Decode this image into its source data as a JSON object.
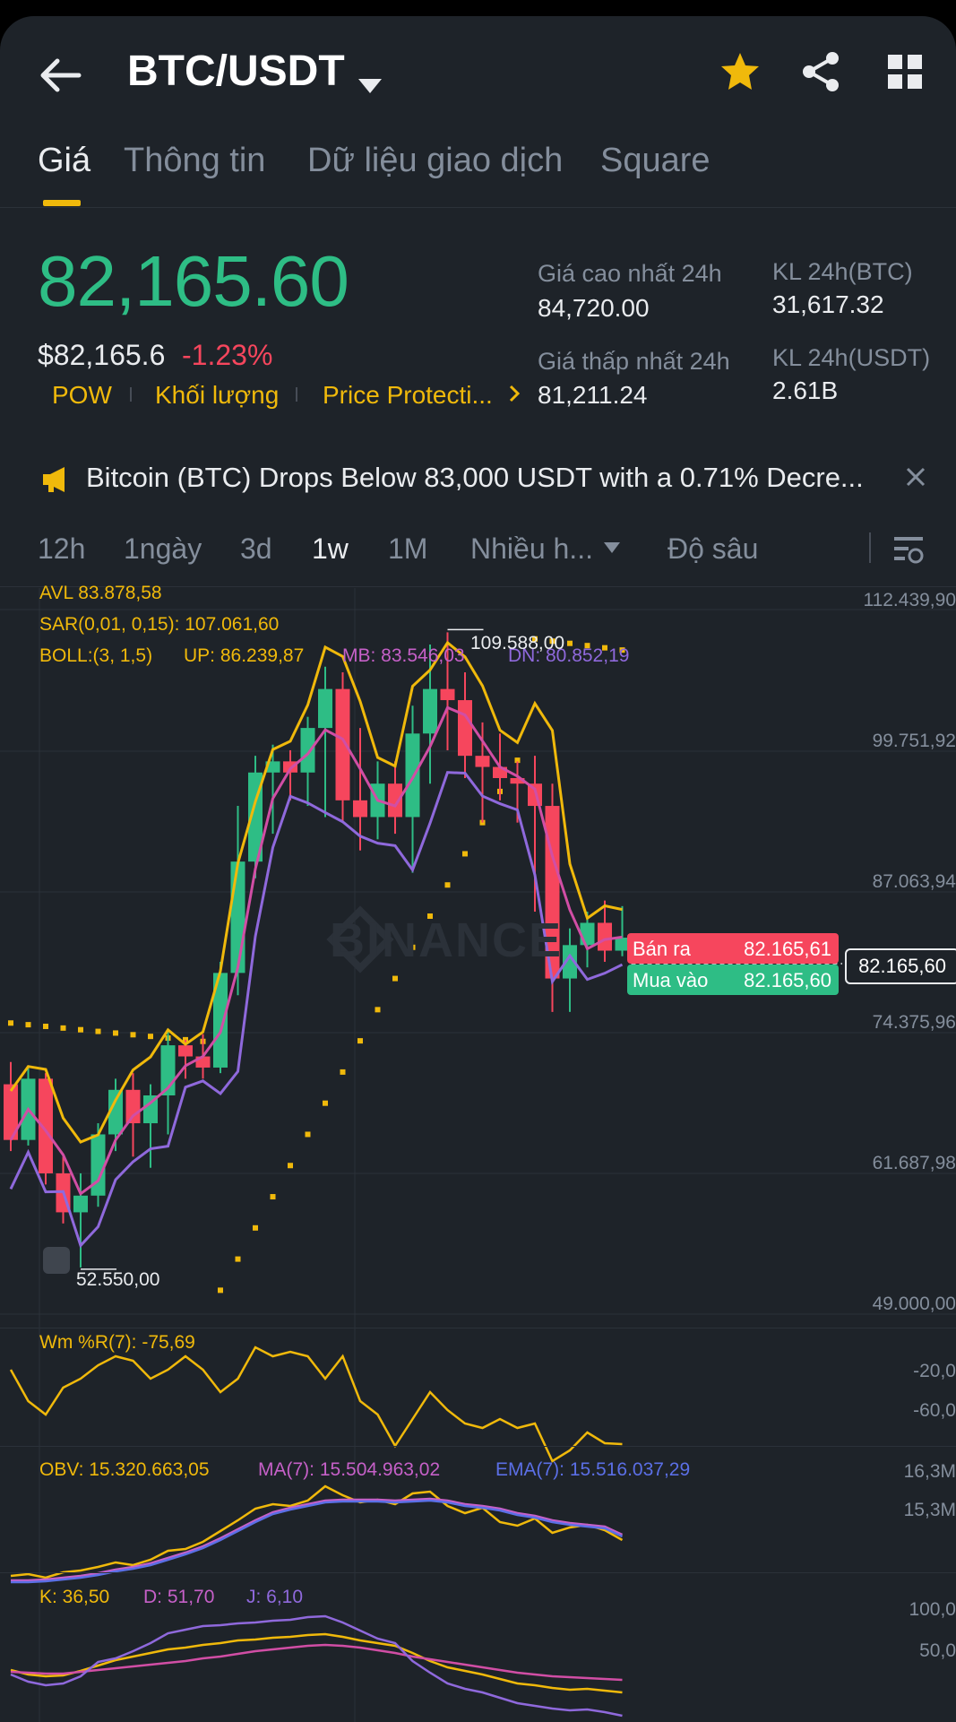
{
  "header": {
    "title": "BTC/USDT"
  },
  "tabs": [
    "Giá",
    "Thông tin",
    "Dữ liệu giao dịch",
    "Square"
  ],
  "price": {
    "last": "82,165.60",
    "usd": "$82,165.6",
    "change": "-1.23%"
  },
  "tags": [
    "POW",
    "Khối lượng",
    "Price Protecti..."
  ],
  "stats": {
    "high_label": "Giá cao nhất 24h",
    "high": "84,720.00",
    "low_label": "Giá thấp nhất 24h",
    "low": "81,211.24",
    "vol_btc_label": "KL 24h(BTC)",
    "vol_btc": "31,617.32",
    "vol_usdt_label": "KL 24h(USDT)",
    "vol_usdt": "2.61B"
  },
  "news": "Bitcoin (BTC) Drops Below 83,000 USDT with a 0.71% Decre...",
  "timeframes": [
    "12h",
    "1ngày",
    "3d",
    "1w",
    "1M",
    "Nhiều h...",
    "Độ sâu"
  ],
  "indicators": {
    "avl": "AVL 83.878,58",
    "sar": "SAR(0,01, 0,15): 107.061,60",
    "boll": "BOLL:(3, 1,5)",
    "up": "UP: 86.239,87",
    "mb": "MB: 83.546,03",
    "dn": "DN: 80.852,19"
  },
  "chart_axis": [
    "112.439,90",
    "99.751,92",
    "87.063,94",
    "74.375,96",
    "61.687,98",
    "49.000,00"
  ],
  "chart_marks": {
    "high": "109.588,00",
    "low": "52.550,00"
  },
  "order": {
    "sell_label": "Bán ra",
    "sell": "82.165,61",
    "buy_label": "Mua vào",
    "buy": "82.165,60",
    "current": "82.165,60"
  },
  "watermark": "BINANCE",
  "wr": {
    "label": "Wm %R(7): -75,69",
    "axis": [
      "-20,0",
      "-60,0"
    ]
  },
  "obv": {
    "obv": "OBV: 15.320.663,05",
    "ma": "MA(7): 15.504.963,02",
    "ema": "EMA(7): 15.516.037,29",
    "axis": [
      "16,3M",
      "15,3M"
    ]
  },
  "kdj": {
    "k": "K: 36,50",
    "d": "D: 51,70",
    "j": "J: 6,10",
    "axis": [
      "100,0",
      "50,0"
    ]
  },
  "colors": {
    "up": "#2ebd85",
    "down": "#f6465d",
    "accent": "#f0b90b",
    "bg": "#1e2329"
  },
  "chart_data": {
    "type": "candlestick",
    "candles": [
      {
        "o": 69000,
        "h": 71000,
        "l": 63000,
        "c": 64000
      },
      {
        "o": 64000,
        "h": 70500,
        "l": 63500,
        "c": 69500
      },
      {
        "o": 69500,
        "h": 70000,
        "l": 60000,
        "c": 61000
      },
      {
        "o": 61000,
        "h": 62500,
        "l": 56500,
        "c": 57500
      },
      {
        "o": 57500,
        "h": 61000,
        "l": 52550,
        "c": 59000
      },
      {
        "o": 59000,
        "h": 65500,
        "l": 58000,
        "c": 64500
      },
      {
        "o": 64500,
        "h": 69500,
        "l": 63000,
        "c": 68500
      },
      {
        "o": 68500,
        "h": 70000,
        "l": 62500,
        "c": 65500
      },
      {
        "o": 65500,
        "h": 69000,
        "l": 61500,
        "c": 68000
      },
      {
        "o": 68000,
        "h": 74000,
        "l": 64500,
        "c": 72500
      },
      {
        "o": 72500,
        "h": 73000,
        "l": 69500,
        "c": 71500
      },
      {
        "o": 71500,
        "h": 73500,
        "l": 69500,
        "c": 70500
      },
      {
        "o": 70500,
        "h": 80000,
        "l": 70000,
        "c": 79000
      },
      {
        "o": 79000,
        "h": 94000,
        "l": 77000,
        "c": 89000
      },
      {
        "o": 89000,
        "h": 98500,
        "l": 87500,
        "c": 97000
      },
      {
        "o": 97000,
        "h": 99500,
        "l": 91500,
        "c": 98000
      },
      {
        "o": 98000,
        "h": 99000,
        "l": 94500,
        "c": 97000
      },
      {
        "o": 97000,
        "h": 102000,
        "l": 94000,
        "c": 101000
      },
      {
        "o": 101000,
        "h": 106500,
        "l": 93000,
        "c": 104500
      },
      {
        "o": 104500,
        "h": 106000,
        "l": 92500,
        "c": 94500
      },
      {
        "o": 94500,
        "h": 101000,
        "l": 90000,
        "c": 93000
      },
      {
        "o": 93000,
        "h": 98000,
        "l": 91000,
        "c": 96000
      },
      {
        "o": 96000,
        "h": 98000,
        "l": 91500,
        "c": 93000
      },
      {
        "o": 93000,
        "h": 103000,
        "l": 88000,
        "c": 100500
      },
      {
        "o": 100500,
        "h": 108500,
        "l": 96000,
        "c": 104500
      },
      {
        "o": 104500,
        "h": 109588,
        "l": 99000,
        "c": 103500
      },
      {
        "o": 103500,
        "h": 106000,
        "l": 96500,
        "c": 98500
      },
      {
        "o": 98500,
        "h": 101500,
        "l": 92500,
        "c": 97500
      },
      {
        "o": 97500,
        "h": 100500,
        "l": 94500,
        "c": 96500
      },
      {
        "o": 96500,
        "h": 98000,
        "l": 92500,
        "c": 96000
      },
      {
        "o": 96000,
        "h": 98500,
        "l": 84500,
        "c": 94000
      },
      {
        "o": 94000,
        "h": 96000,
        "l": 75500,
        "c": 78500
      },
      {
        "o": 78500,
        "h": 83000,
        "l": 75500,
        "c": 81500
      },
      {
        "o": 81500,
        "h": 84500,
        "l": 79500,
        "c": 83500
      },
      {
        "o": 83500,
        "h": 85500,
        "l": 80000,
        "c": 81000
      },
      {
        "o": 81000,
        "h": 85000,
        "l": 80500,
        "c": 82165.6
      }
    ],
    "ylim": [
      49000,
      112439.9
    ]
  }
}
